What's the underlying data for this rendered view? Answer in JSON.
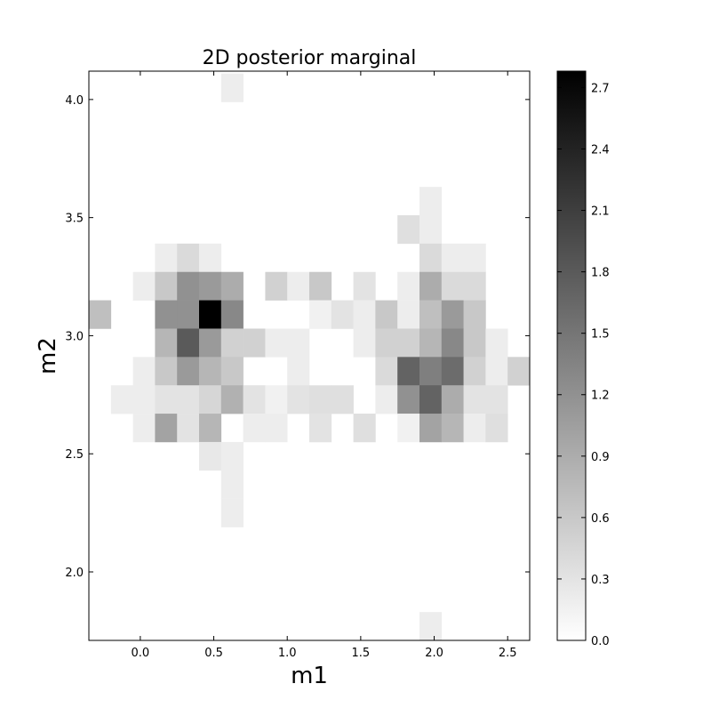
{
  "chart_data": {
    "type": "heatmap",
    "title": "2D posterior marginal",
    "xlabel": "m1",
    "ylabel": "m2",
    "xlim": [
      -0.35,
      2.65
    ],
    "ylim": [
      1.71,
      4.12
    ],
    "xticks": [
      0.0,
      0.5,
      1.0,
      1.5,
      2.0,
      2.5
    ],
    "xtick_labels": [
      "0.0",
      "0.5",
      "1.0",
      "1.5",
      "2.0",
      "2.5"
    ],
    "yticks": [
      2.0,
      2.5,
      3.0,
      3.5,
      4.0
    ],
    "ytick_labels": [
      "2.0",
      "2.5",
      "3.0",
      "3.5",
      "4.0"
    ],
    "colormap": "gray_r",
    "color_low": "#ffffff",
    "color_high": "#000000",
    "colorbar": {
      "min": 0.0,
      "max": 2.78,
      "ticks": [
        0.0,
        0.3,
        0.6,
        0.9,
        1.2,
        1.5,
        1.8,
        2.1,
        2.4,
        2.7
      ],
      "tick_labels": [
        "0.0",
        "0.3",
        "0.6",
        "0.9",
        "1.2",
        "1.5",
        "1.8",
        "2.1",
        "2.4",
        "2.7"
      ]
    },
    "x_bin_edges": [
      -0.35,
      -0.2,
      -0.05,
      0.1,
      0.25,
      0.4,
      0.55,
      0.7,
      0.85,
      1.0,
      1.15,
      1.3,
      1.45,
      1.6,
      1.75,
      1.9,
      2.05,
      2.2,
      2.35,
      2.5,
      2.65
    ],
    "y_bin_edges": [
      1.71,
      1.83,
      1.95,
      2.07,
      2.19,
      2.31,
      2.43,
      2.55,
      2.67,
      2.79,
      2.91,
      3.03,
      3.15,
      3.27,
      3.39,
      3.51,
      3.63,
      3.75,
      3.87,
      3.99,
      4.11
    ],
    "z_rows_top_to_bottom": [
      [
        0,
        0,
        0,
        0,
        0,
        0,
        0.2,
        0,
        0,
        0,
        0,
        0,
        0,
        0,
        0,
        0,
        0,
        0,
        0,
        0
      ],
      [
        0,
        0,
        0,
        0,
        0,
        0,
        0,
        0,
        0,
        0,
        0,
        0,
        0,
        0,
        0,
        0,
        0,
        0,
        0,
        0
      ],
      [
        0,
        0,
        0,
        0,
        0,
        0,
        0,
        0,
        0,
        0,
        0,
        0,
        0,
        0,
        0,
        0,
        0,
        0,
        0,
        0
      ],
      [
        0,
        0,
        0,
        0,
        0,
        0,
        0,
        0,
        0,
        0,
        0,
        0,
        0,
        0,
        0,
        0,
        0,
        0,
        0,
        0
      ],
      [
        0,
        0,
        0,
        0,
        0,
        0,
        0,
        0,
        0,
        0,
        0,
        0,
        0,
        0,
        0,
        0.2,
        0,
        0,
        0,
        0
      ],
      [
        0,
        0,
        0,
        0,
        0,
        0,
        0,
        0,
        0,
        0,
        0,
        0,
        0,
        0,
        0.35,
        0.2,
        0,
        0,
        0,
        0
      ],
      [
        0,
        0,
        0,
        0.2,
        0.4,
        0.2,
        0,
        0,
        0,
        0,
        0,
        0,
        0,
        0,
        0,
        0.4,
        0.2,
        0.2,
        0,
        0
      ],
      [
        0,
        0,
        0.2,
        0.6,
        1.2,
        1.1,
        0.9,
        0,
        0.5,
        0.2,
        0.6,
        0,
        0.3,
        0,
        0.2,
        0.9,
        0.4,
        0.4,
        0,
        0
      ],
      [
        0.7,
        0,
        0,
        1.2,
        1.2,
        2.78,
        1.3,
        0,
        0,
        0,
        0.15,
        0.3,
        0.2,
        0.6,
        0.2,
        0.7,
        1.1,
        0.6,
        0,
        0
      ],
      [
        0,
        0,
        0,
        0.8,
        1.8,
        1.1,
        0.5,
        0.5,
        0.2,
        0.2,
        0,
        0,
        0.2,
        0.5,
        0.5,
        0.8,
        1.3,
        0.6,
        0.2,
        0
      ],
      [
        0,
        0,
        0.2,
        0.6,
        1.1,
        0.8,
        0.6,
        0,
        0,
        0.2,
        0,
        0,
        0,
        0.4,
        1.7,
        1.4,
        1.6,
        0.5,
        0.2,
        0.5
      ],
      [
        0,
        0.2,
        0.2,
        0.3,
        0.3,
        0.45,
        0.85,
        0.3,
        0.15,
        0.3,
        0.35,
        0.35,
        0,
        0.2,
        1.2,
        1.7,
        0.9,
        0.3,
        0.3,
        0
      ],
      [
        0,
        0,
        0.2,
        1.0,
        0.3,
        0.8,
        0,
        0.2,
        0.2,
        0,
        0.3,
        0,
        0.35,
        0,
        0.15,
        1.0,
        0.8,
        0.2,
        0.35,
        0
      ],
      [
        0,
        0,
        0,
        0,
        0,
        0.25,
        0.2,
        0,
        0,
        0,
        0,
        0,
        0,
        0,
        0,
        0,
        0,
        0,
        0,
        0
      ],
      [
        0,
        0,
        0,
        0,
        0,
        0,
        0.2,
        0,
        0,
        0,
        0,
        0,
        0,
        0,
        0,
        0,
        0,
        0,
        0,
        0
      ],
      [
        0,
        0,
        0,
        0,
        0,
        0,
        0.2,
        0,
        0,
        0,
        0,
        0,
        0,
        0,
        0,
        0,
        0,
        0,
        0,
        0
      ],
      [
        0,
        0,
        0,
        0,
        0,
        0,
        0,
        0,
        0,
        0,
        0,
        0,
        0,
        0,
        0,
        0,
        0,
        0,
        0,
        0
      ],
      [
        0,
        0,
        0,
        0,
        0,
        0,
        0,
        0,
        0,
        0,
        0,
        0,
        0,
        0,
        0,
        0,
        0,
        0,
        0,
        0
      ],
      [
        0,
        0,
        0,
        0,
        0,
        0,
        0,
        0,
        0,
        0,
        0,
        0,
        0,
        0,
        0,
        0,
        0,
        0,
        0,
        0
      ],
      [
        0,
        0,
        0,
        0,
        0,
        0,
        0,
        0,
        0,
        0,
        0,
        0,
        0,
        0,
        0,
        0.2,
        0,
        0,
        0,
        0
      ]
    ]
  }
}
